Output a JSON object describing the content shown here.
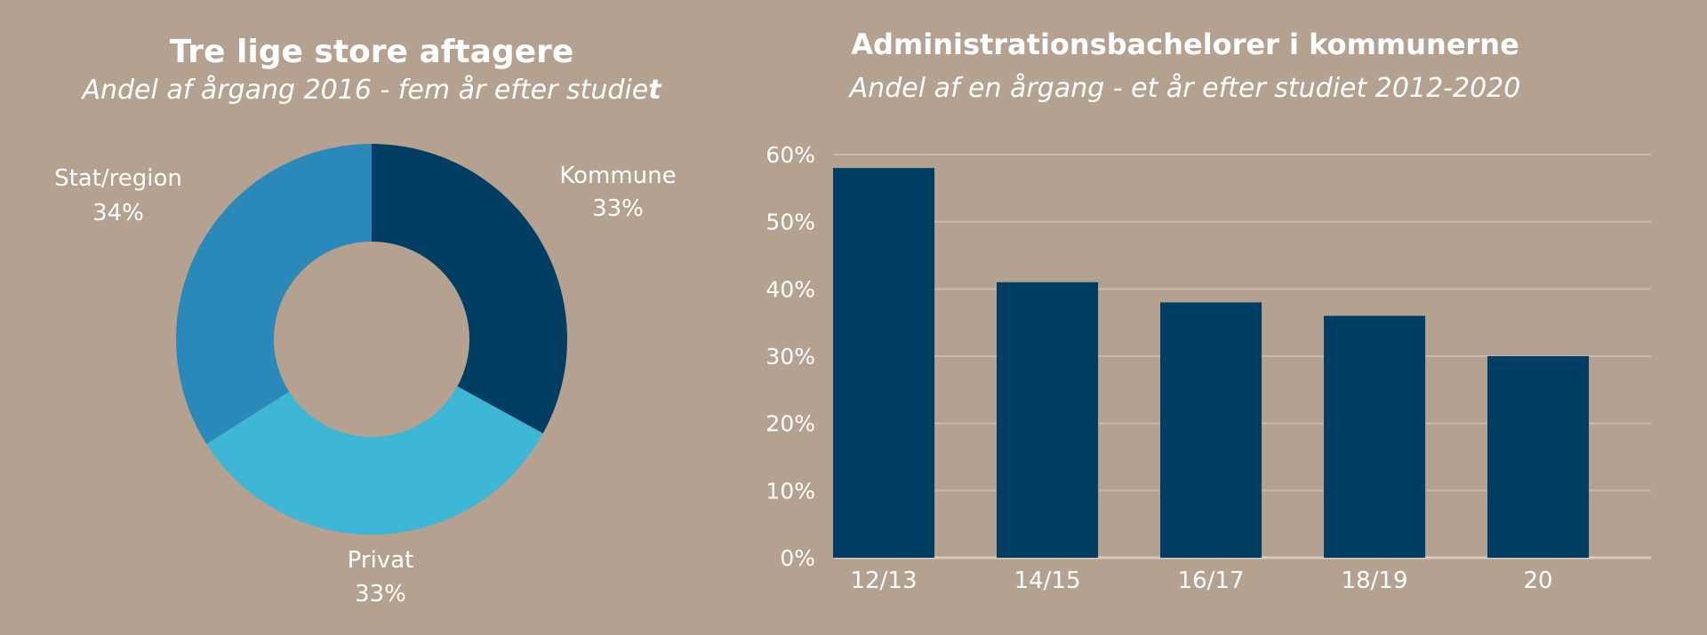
{
  "chart_data": [
    {
      "type": "pie",
      "title": "Tre lige store aftagere",
      "subtitle_main": "Andel af årgang 2016 - fem år efter studie",
      "subtitle_last": "t",
      "slices": [
        {
          "label": "Kommune",
          "value_label": "33%",
          "value": 33,
          "color": "#003f63"
        },
        {
          "label": "Privat",
          "value_label": "33%",
          "value": 33,
          "color": "#3eb6d6"
        },
        {
          "label": "Stat/region",
          "value_label": "34%",
          "value": 34,
          "color": "#2b89ba"
        }
      ]
    },
    {
      "type": "bar",
      "title": "Administrationsbachelorer i kommunerne",
      "subtitle": "Andel af en årgang - et år efter studiet 2012-2020",
      "categories": [
        "12/13",
        "14/15",
        "16/17",
        "18/19",
        "20"
      ],
      "values": [
        58,
        41,
        38,
        36,
        30
      ],
      "ylim": [
        0,
        60
      ],
      "yticks": [
        0,
        10,
        20,
        30,
        40,
        50,
        60
      ],
      "ytick_labels": [
        "0%",
        "10%",
        "20%",
        "30%",
        "40%",
        "50%",
        "60%"
      ],
      "grid": true,
      "bar_color": "#003f63",
      "grid_color": "#c9baad",
      "axis_color": "#d6cbc1"
    }
  ]
}
